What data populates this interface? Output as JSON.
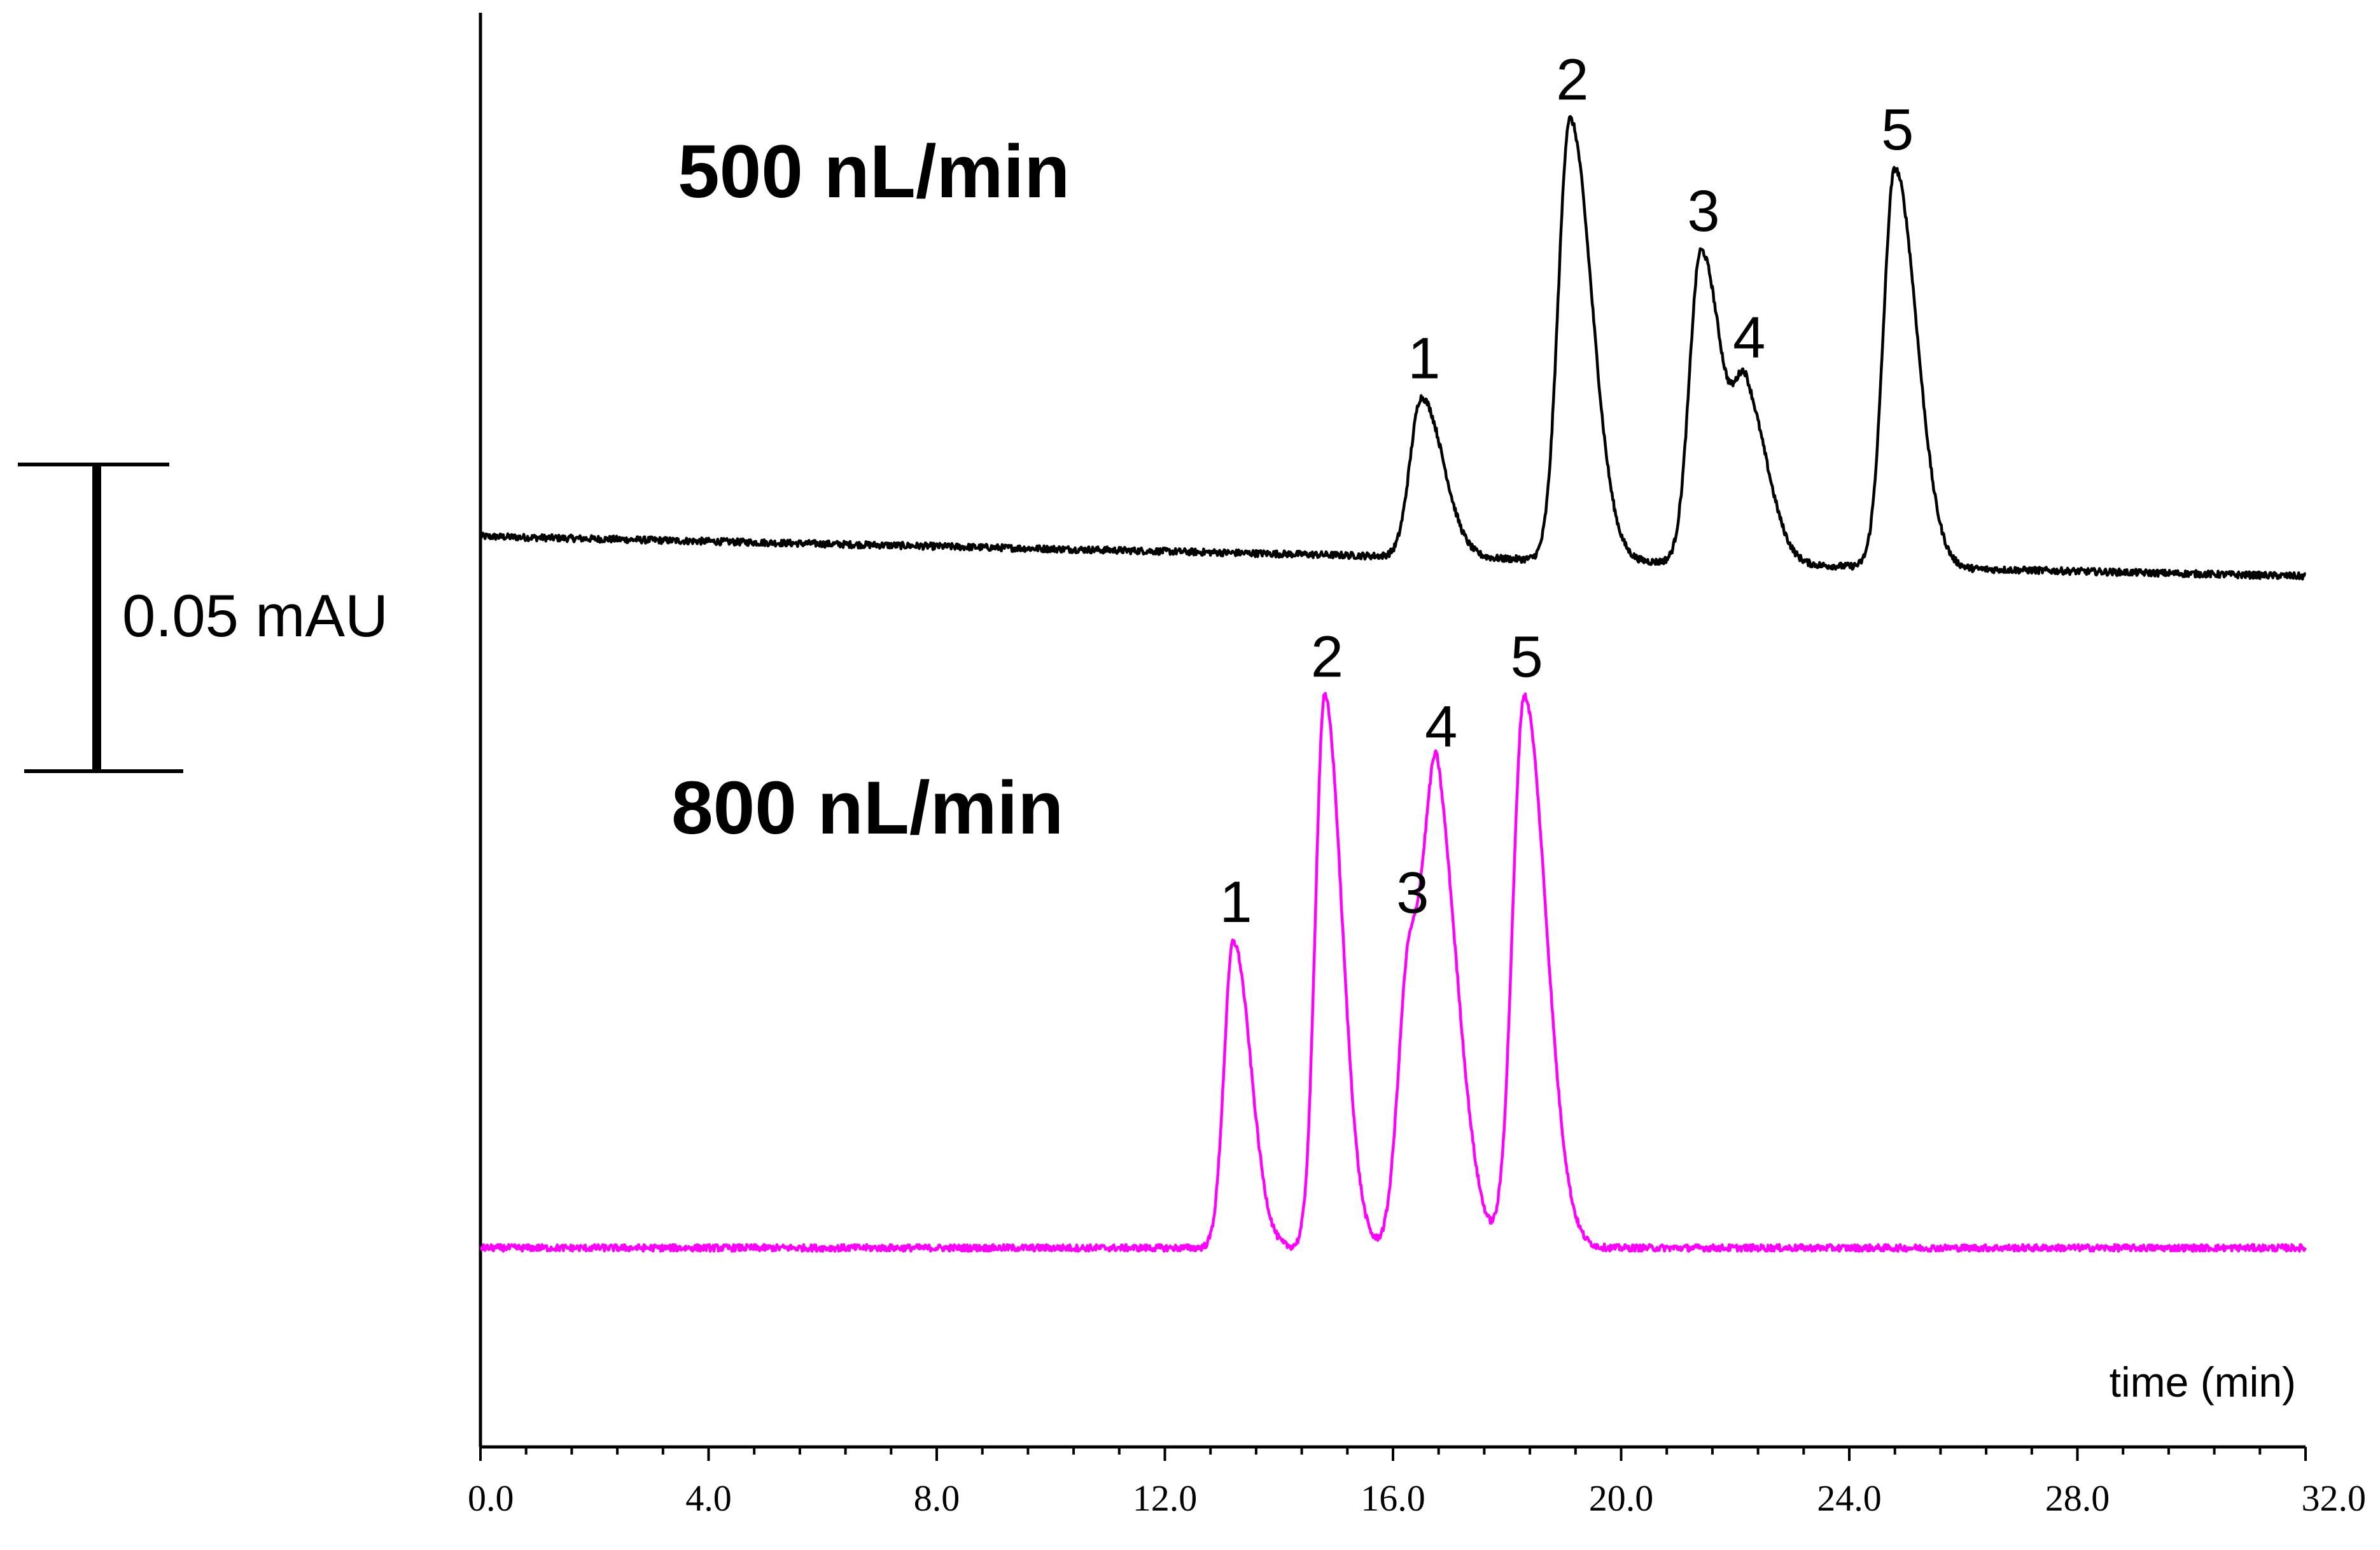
{
  "chart_data": {
    "type": "line",
    "xlabel": "time (min)",
    "xlim": [
      0,
      32
    ],
    "x_ticks": [
      "0.0",
      "4.0",
      "8.0",
      "12.0",
      "16.0",
      "20.0",
      "24.0",
      "28.0",
      "32.0"
    ],
    "scale_bar": {
      "label": "0.05 mAU",
      "value_mAU": 0.05
    },
    "series": [
      {
        "name": "500 nL/min",
        "color": "#000000",
        "baseline_start_mAU": 0.0,
        "baseline_end_mAU": -0.0065,
        "peaks": [
          {
            "label": "1",
            "time": 16.5,
            "height_mAU": 0.026
          },
          {
            "label": "2",
            "time": 19.1,
            "height_mAU": 0.072
          },
          {
            "label": "3",
            "time": 21.4,
            "height_mAU": 0.051
          },
          {
            "label": "4",
            "time": 22.2,
            "height_mAU": 0.025
          },
          {
            "label": "5",
            "time": 24.8,
            "height_mAU": 0.065
          }
        ]
      },
      {
        "name": "800 nL/min",
        "color": "#ff00ff",
        "baseline_start_mAU": -0.116,
        "baseline_end_mAU": -0.116,
        "peaks": [
          {
            "label": "1",
            "time": 13.2,
            "height_mAU": 0.05
          },
          {
            "label": "2",
            "time": 14.8,
            "height_mAU": 0.09
          },
          {
            "label": "3",
            "time": 16.3,
            "height_mAU": 0.049
          },
          {
            "label": "4",
            "time": 16.8,
            "height_mAU": 0.058
          },
          {
            "label": "5",
            "time": 18.3,
            "height_mAU": 0.09
          }
        ]
      }
    ]
  }
}
